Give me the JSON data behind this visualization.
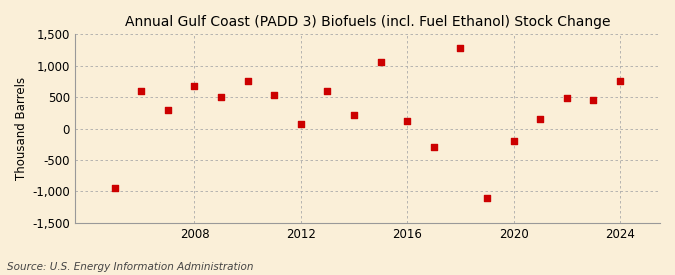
{
  "title": "Annual Gulf Coast (PADD 3) Biofuels (incl. Fuel Ethanol) Stock Change",
  "ylabel": "Thousand Barrels",
  "source": "Source: U.S. Energy Information Administration",
  "years": [
    2005,
    2006,
    2007,
    2008,
    2009,
    2010,
    2011,
    2012,
    2013,
    2014,
    2015,
    2016,
    2017,
    2018,
    2019,
    2020,
    2021,
    2022,
    2023,
    2024
  ],
  "values": [
    -950,
    600,
    300,
    680,
    510,
    760,
    530,
    80,
    600,
    210,
    1060,
    120,
    -290,
    1280,
    -1100,
    -200,
    160,
    490,
    460,
    750
  ],
  "marker_color": "#cc0000",
  "background_color": "#faefd8",
  "grid_color": "#aaaaaa",
  "ylim": [
    -1500,
    1500
  ],
  "yticks": [
    -1500,
    -1000,
    -500,
    0,
    500,
    1000,
    1500
  ],
  "xticks": [
    2008,
    2012,
    2016,
    2020,
    2024
  ],
  "title_fontsize": 10,
  "axis_fontsize": 8.5,
  "source_fontsize": 7.5,
  "marker_size": 5
}
